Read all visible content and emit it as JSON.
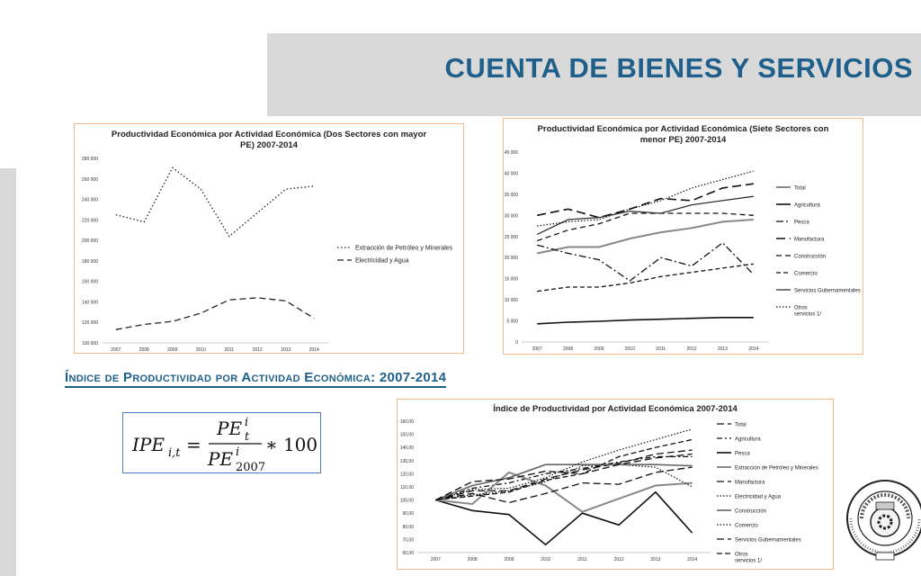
{
  "slide": {
    "title": "CUENTA DE BIENES Y SERVICIOS",
    "section_heading": "Índice de Productividad por Actividad Económica: 2007-2014",
    "formula": {
      "lhs": "IPE",
      "lhs_sub": "i,t",
      "num": "PE",
      "num_sup": "i",
      "num_sub": "t",
      "den": "PE",
      "den_sup": "i",
      "den_sub": "2007",
      "tail": "∗ 100"
    }
  },
  "colors": {
    "accent": "#1f5f8b",
    "header_band": "#d9d9d9",
    "chart_border": "#f0b98a",
    "formula_border": "#4a7fbf"
  },
  "chart_data": [
    {
      "type": "line",
      "title": "Productividad Económica por Actividad Económica (Dos Sectores con mayor PE) 2007-2014",
      "title_lines": [
        "Productividad Económica por Actividad Económica (Dos Sectores con mayor",
        "PE) 2007-2014"
      ],
      "x": [
        "2007",
        "2008",
        "2009",
        "2010",
        "2011",
        "2012",
        "2013",
        "2014"
      ],
      "ylim": [
        100000,
        280000
      ],
      "yticks": [
        "100 000",
        "120 000",
        "140 000",
        "160 000",
        "180 000",
        "200 000",
        "220 000",
        "240 000",
        "260 000",
        "280 000"
      ],
      "legend_position": "right",
      "series": [
        {
          "name": "Extracción de Petróleo y Minerales",
          "dash": "1.5,2.5",
          "color": "#222",
          "values": [
            225000,
            218000,
            271000,
            250000,
            204000,
            227000,
            250000,
            253000
          ]
        },
        {
          "name": "Electricidad y Agua",
          "dash": "7,4",
          "color": "#222",
          "values": [
            113000,
            118000,
            121000,
            129000,
            142000,
            144000,
            141000,
            124000
          ]
        }
      ]
    },
    {
      "type": "line",
      "title": "Productividad Económica por Actividad Económica (Siete Sectores con menor PE) 2007-2014",
      "title_lines": [
        "Productividad Económica por Actividad Económica (Siete Sectores con",
        "menor PE) 2007-2014"
      ],
      "x": [
        "2007",
        "2008",
        "2009",
        "2010",
        "2011",
        "2012",
        "2013",
        "2014"
      ],
      "ylim": [
        0,
        45000
      ],
      "yticks": [
        "0",
        "5 000",
        "10 000",
        "15 000",
        "20 000",
        "25 000",
        "30 000",
        "35 000",
        "40 000",
        "45 000"
      ],
      "legend_position": "right",
      "series": [
        {
          "name": "Total",
          "dash": "",
          "color": "#888",
          "width": 2,
          "values": [
            21000,
            22500,
            22500,
            24500,
            26000,
            27000,
            28500,
            29000
          ]
        },
        {
          "name": "Agricultura",
          "dash": "",
          "color": "#111",
          "width": 1.6,
          "values": [
            4300,
            4700,
            4900,
            5200,
            5400,
            5600,
            5800,
            5800
          ]
        },
        {
          "name": "Pesca",
          "dash": "8,3,2,3",
          "color": "#111",
          "width": 1.3,
          "values": [
            23000,
            21000,
            19500,
            14500,
            20000,
            18000,
            23500,
            16000
          ]
        },
        {
          "name": "Manufactura",
          "dash": "10,5",
          "color": "#111",
          "width": 1.6,
          "values": [
            30000,
            31500,
            29500,
            31500,
            34000,
            33500,
            36500,
            37500
          ]
        },
        {
          "name": "Construcción",
          "dash": "6,4",
          "color": "#111",
          "width": 1.3,
          "values": [
            24000,
            26500,
            28000,
            30500,
            30500,
            30500,
            30500,
            30000
          ]
        },
        {
          "name": "Comercio",
          "dash": "5,3",
          "color": "#111",
          "width": 1.3,
          "values": [
            12000,
            13000,
            13000,
            14000,
            15500,
            16500,
            17500,
            18500
          ]
        },
        {
          "name": "Servicios Gubernamentales",
          "dash": "",
          "color": "#333",
          "width": 1.3,
          "values": [
            25500,
            29000,
            29500,
            31000,
            30500,
            32500,
            33500,
            34500
          ]
        },
        {
          "name": "Otros servicios 1/",
          "name_lines": [
            "Otros",
            "servicios 1/"
          ],
          "dash": "1.5,2",
          "color": "#111",
          "width": 1.2,
          "values": [
            27500,
            28500,
            29000,
            31500,
            33500,
            36500,
            38500,
            40500
          ]
        }
      ]
    },
    {
      "type": "line",
      "title": "Índice de Productividad por Actividad Económica 2007-2014",
      "title_lines": [
        "Índice de Productividad por Actividad Económica 2007-2014"
      ],
      "x": [
        "2007",
        "2008",
        "2009",
        "2010",
        "2011",
        "2012",
        "2013",
        "2014"
      ],
      "ylim": [
        60,
        160
      ],
      "yticks": [
        "60,00",
        "70,00",
        "80,00",
        "90,00",
        "100,00",
        "110,00",
        "120,00",
        "130,00",
        "140,00",
        "150,00",
        "160,00"
      ],
      "legend_position": "right",
      "series": [
        {
          "name": "Total",
          "dash": "8,4",
          "color": "#111",
          "width": 1.3,
          "values": [
            100,
            107,
            107,
            116,
            123,
            128,
            135,
            138
          ]
        },
        {
          "name": "Agricultura",
          "dash": "6,3,2,3",
          "color": "#111",
          "width": 1.3,
          "values": [
            100,
            109,
            113,
            120,
            124,
            129,
            133,
            133
          ]
        },
        {
          "name": "Pesca",
          "dash": "",
          "color": "#111",
          "width": 1.6,
          "values": [
            100,
            92,
            89,
            66,
            90,
            81,
            106,
            75
          ]
        },
        {
          "name": "Extracción de Petróleo y Minerales",
          "dash": "",
          "color": "#888",
          "width": 2,
          "values": [
            100,
            97,
            121,
            111,
            91,
            101,
            111,
            113
          ]
        },
        {
          "name": "Manufactura",
          "dash": "8,4",
          "color": "#111",
          "width": 1.3,
          "values": [
            100,
            105,
            98,
            105,
            113,
            112,
            121,
            125
          ]
        },
        {
          "name": "Electricidad y Agua",
          "dash": "1.5,2",
          "color": "#111",
          "width": 1.2,
          "values": [
            100,
            104,
            107,
            114,
            126,
            127,
            125,
            110
          ]
        },
        {
          "name": "Construcción",
          "dash": "",
          "color": "#666",
          "width": 1.6,
          "values": [
            100,
            111,
            117,
            127,
            127,
            127,
            127,
            126
          ]
        },
        {
          "name": "Comercio",
          "dash": "1.5,2",
          "color": "#111",
          "width": 1.2,
          "values": [
            100,
            108,
            109,
            117,
            129,
            138,
            146,
            154
          ]
        },
        {
          "name": "Servicios Gubernamentales",
          "dash": "8,4",
          "color": "#111",
          "width": 1.3,
          "values": [
            100,
            114,
            116,
            122,
            120,
            127,
            132,
            135
          ]
        },
        {
          "name": "Otros servicios 1/",
          "name_lines": [
            "Otros",
            "servicios 1/"
          ],
          "dash": "6,3",
          "color": "#111",
          "width": 1.3,
          "values": [
            100,
            103,
            106,
            115,
            120,
            133,
            140,
            146
          ]
        }
      ]
    }
  ]
}
